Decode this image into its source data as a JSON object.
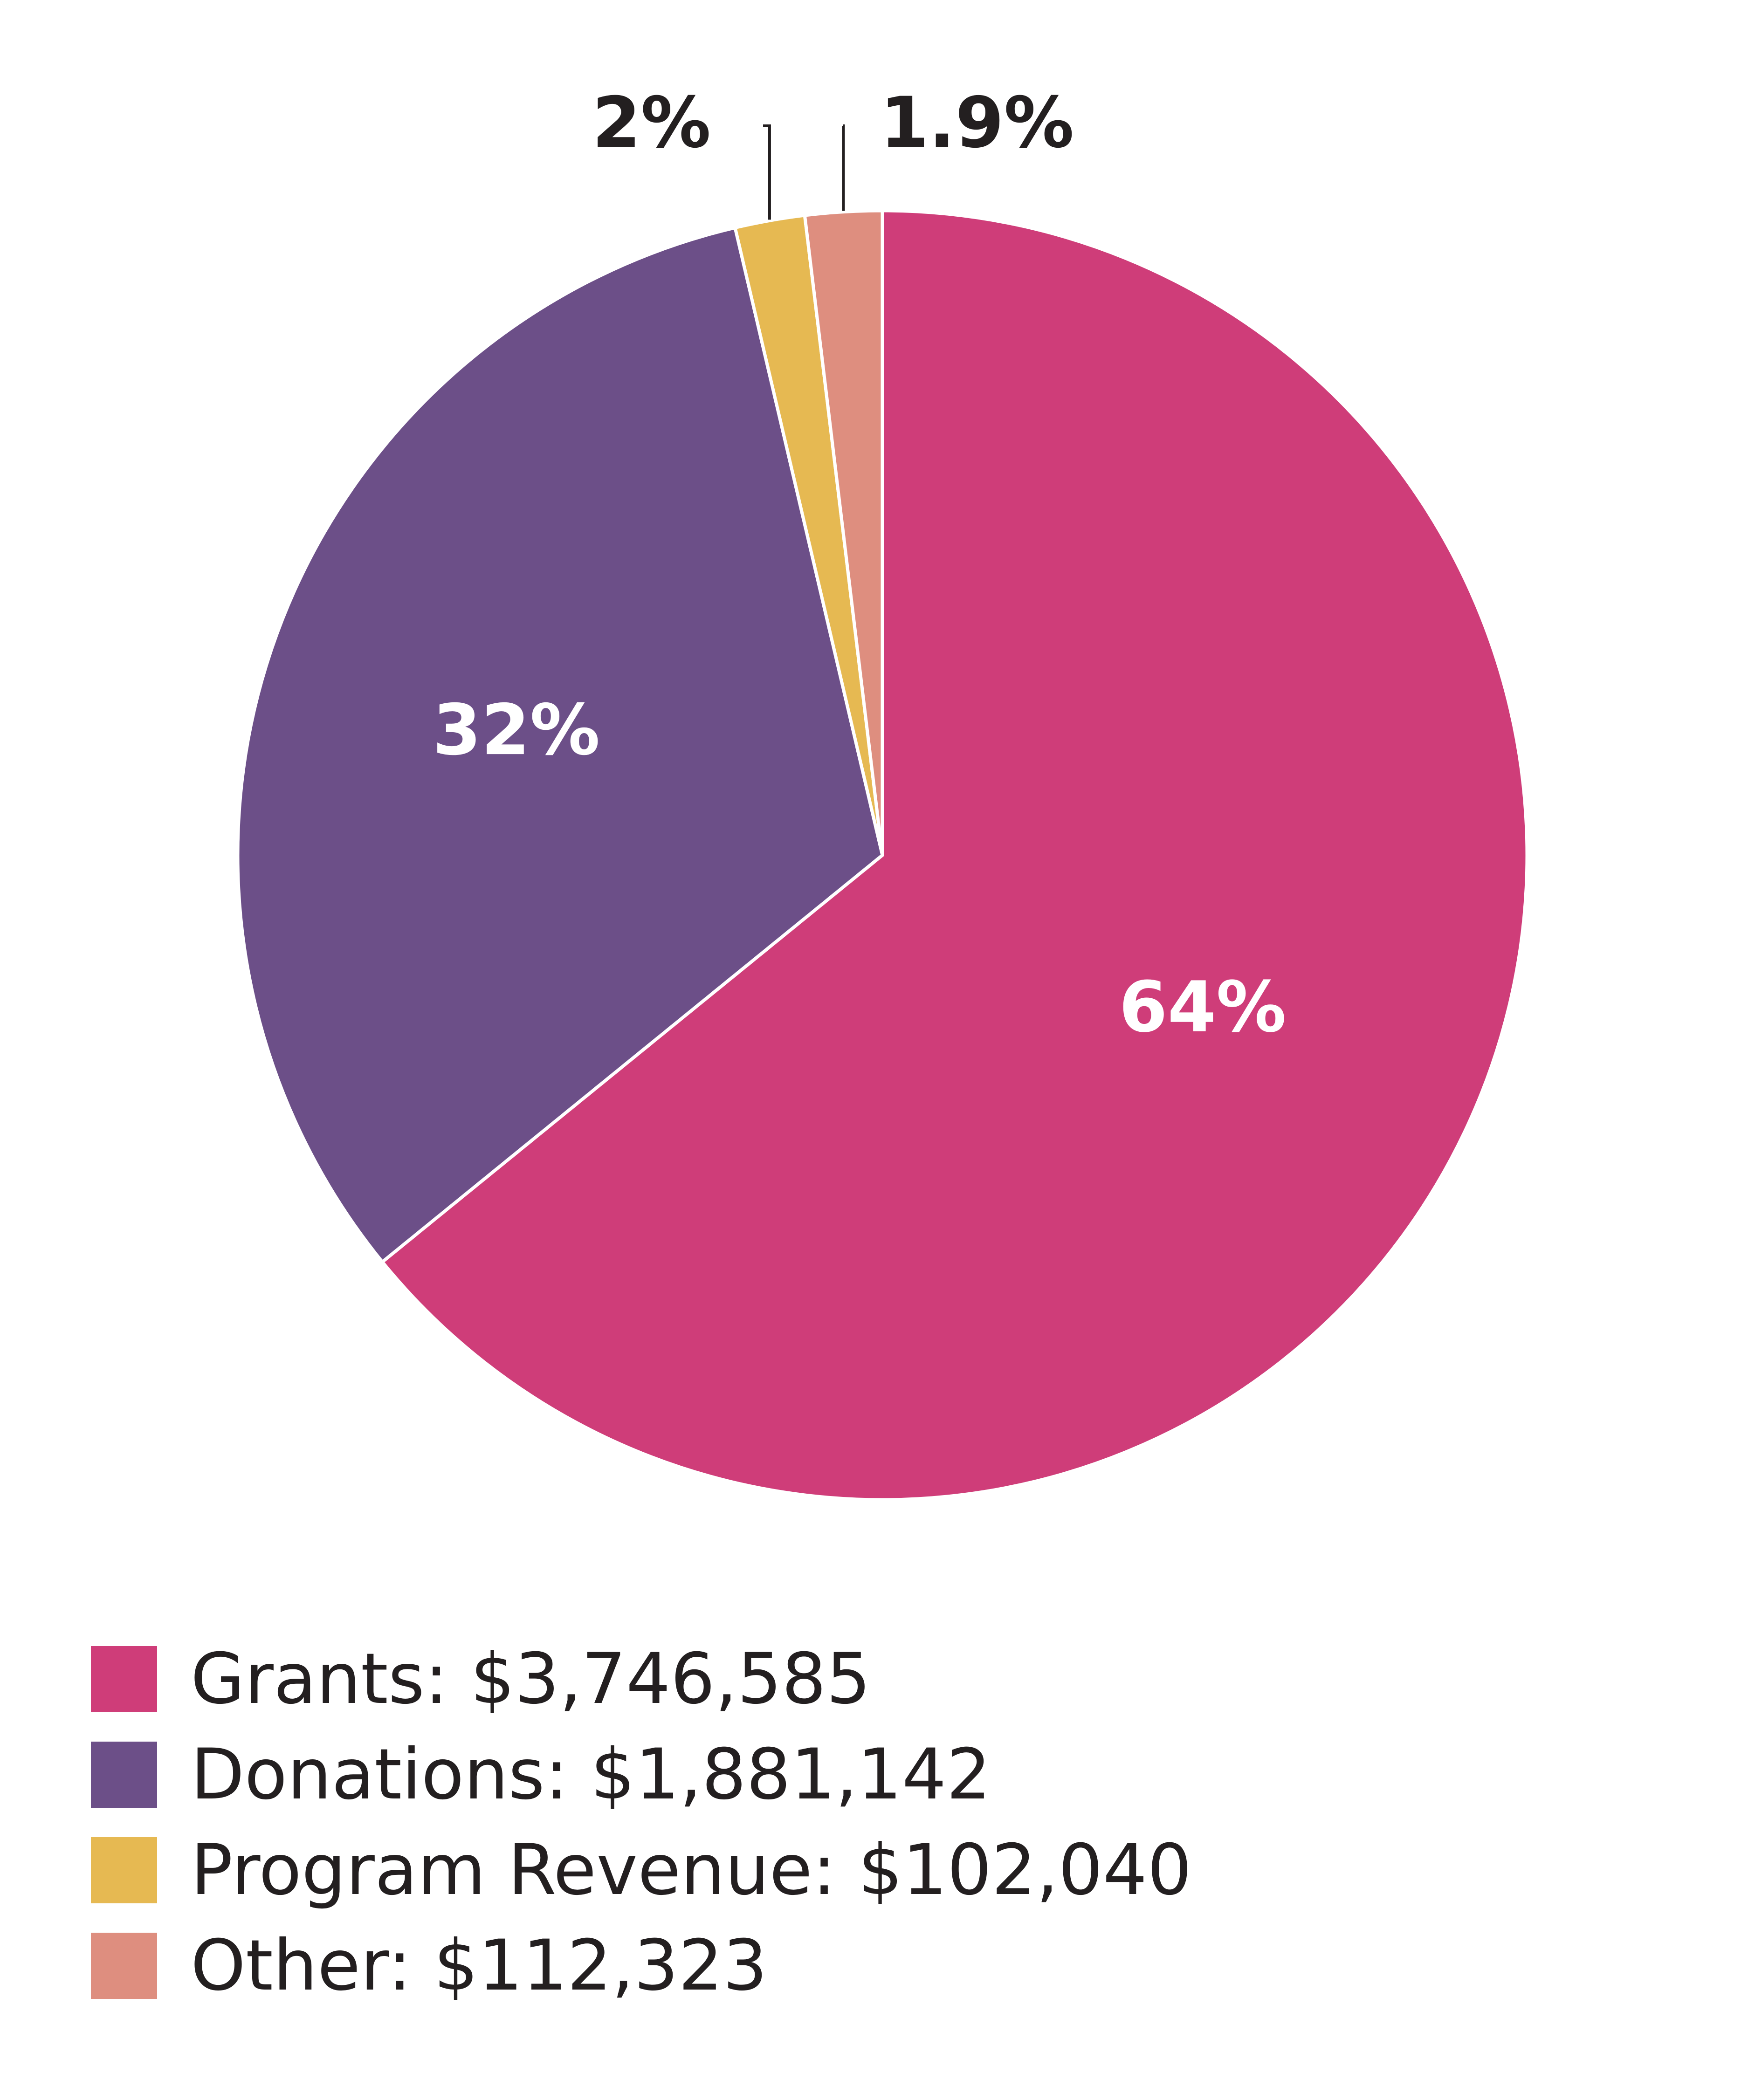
{
  "chart_data": {
    "type": "pie",
    "start_angle_deg": 0,
    "direction": "clockwise",
    "slices": [
      {
        "name": "Grants",
        "value": 3746585,
        "percent_label": "64%",
        "color": "#cf3d79",
        "label_color": "#ffffff"
      },
      {
        "name": "Donations",
        "value": 1881142,
        "percent_label": "32%",
        "color": "#6c4f88",
        "label_color": "#ffffff"
      },
      {
        "name": "Program Revenue",
        "value": 102040,
        "percent_label": "2%",
        "color": "#e6b952",
        "label_color": "#231f20"
      },
      {
        "name": "Other",
        "value": 112323,
        "percent_label": "1.9%",
        "color": "#de8e7f",
        "label_color": "#231f20"
      }
    ],
    "legend": {
      "placement": "bottom-left",
      "entries": [
        {
          "label": "Grants:",
          "amount": "$3,746,585",
          "color": "#cf3d79"
        },
        {
          "label": "Donations:",
          "amount": "$1,881,142",
          "color": "#6c4f88"
        },
        {
          "label": "Program Revenue:",
          "amount": "$102,040",
          "color": "#e6b952"
        },
        {
          "label": "Other:",
          "amount": "$112,323",
          "color": "#de8e7f"
        }
      ]
    }
  }
}
